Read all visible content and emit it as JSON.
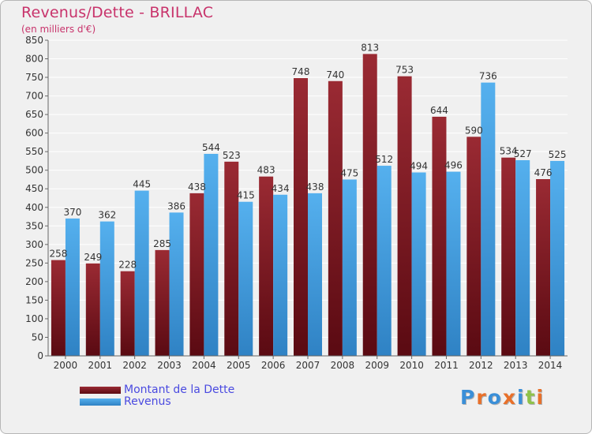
{
  "title": "Revenus/Dette - BRILLAC",
  "subtitle": "(en milliers d'€)",
  "logo": {
    "text": "Proxiti",
    "colors": [
      "#3a8fd8",
      "#e8702a",
      "#3a8fd8",
      "#e8702a",
      "#3a8fd8",
      "#8fc24a",
      "#e8702a"
    ]
  },
  "colors": {
    "dette": "#8b1f2a",
    "revenus": "#3f9de0",
    "title": "#c8336b",
    "legend_text": "#4a4ae0"
  },
  "chart_data": {
    "type": "bar",
    "title": "Revenus/Dette - BRILLAC",
    "subtitle": "(en milliers d'€)",
    "categories": [
      "2000",
      "2001",
      "2002",
      "2003",
      "2004",
      "2005",
      "2006",
      "2007",
      "2008",
      "2009",
      "2010",
      "2011",
      "2012",
      "2013",
      "2014"
    ],
    "series": [
      {
        "name": "Montant de la Dette",
        "values": [
          258,
          249,
          228,
          285,
          438,
          523,
          483,
          748,
          740,
          813,
          753,
          644,
          590,
          534,
          476
        ]
      },
      {
        "name": "Revenus",
        "values": [
          370,
          362,
          445,
          386,
          544,
          415,
          434,
          438,
          475,
          512,
          494,
          496,
          736,
          527,
          525
        ]
      }
    ],
    "ylim": [
      0,
      850
    ],
    "yticks": [
      0,
      50,
      100,
      150,
      200,
      250,
      300,
      350,
      400,
      450,
      500,
      550,
      600,
      650,
      700,
      750,
      800,
      850
    ],
    "grid": true,
    "legend_position": "bottom-left"
  }
}
